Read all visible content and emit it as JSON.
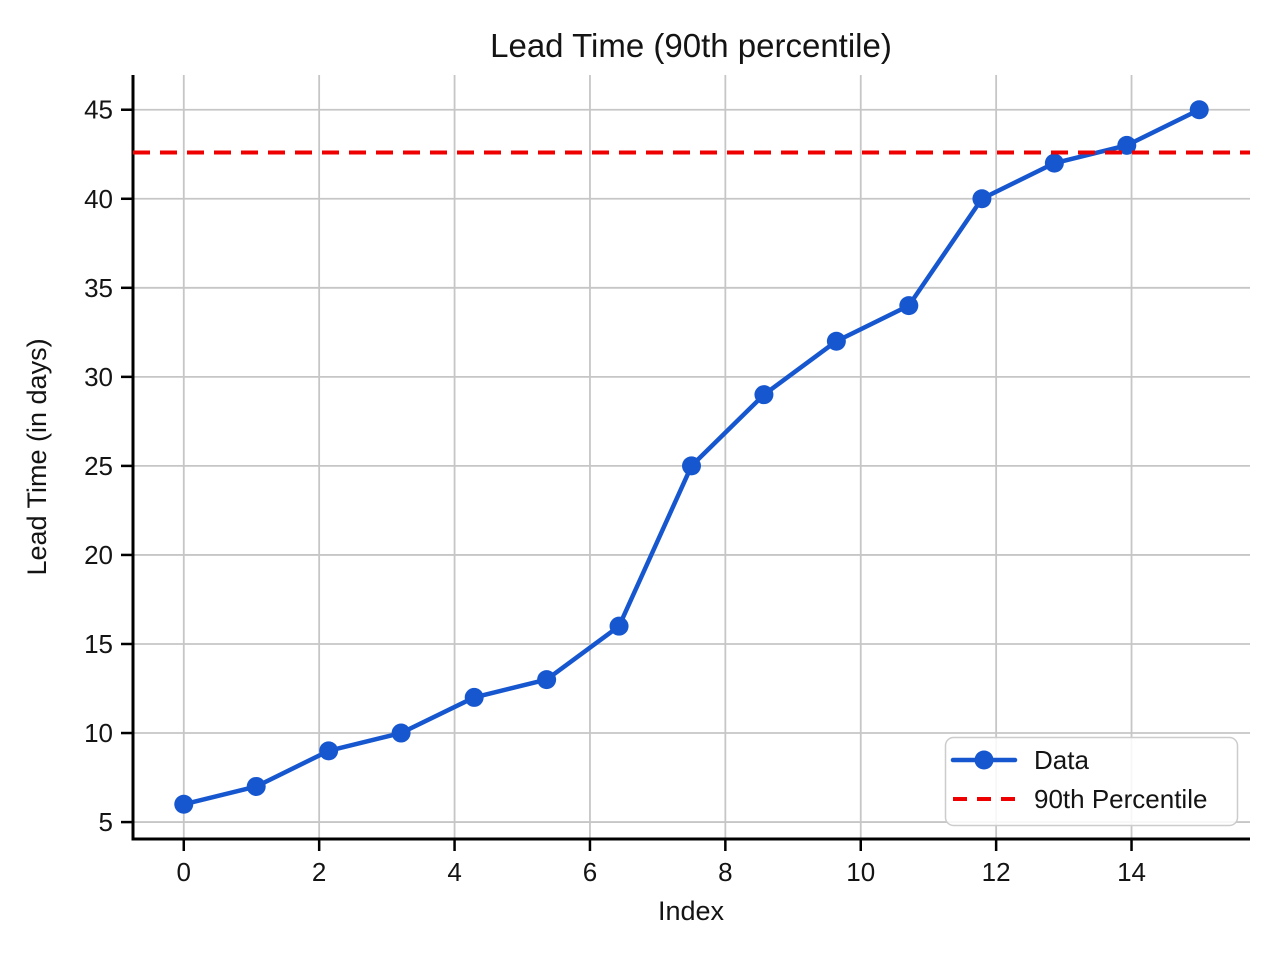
{
  "chart_data": {
    "type": "line",
    "title": "Lead Time (90th percentile)",
    "xlabel": "Index",
    "ylabel": "Lead Time (in days)",
    "x": [
      0,
      1.07,
      2.14,
      3.21,
      4.29,
      5.36,
      6.43,
      7.5,
      8.57,
      9.64,
      10.71,
      11.79,
      12.86,
      13.93,
      15
    ],
    "series": [
      {
        "name": "Data",
        "values": [
          6,
          7,
          9,
          10,
          12,
          13,
          16,
          25,
          29,
          32,
          34,
          40,
          42,
          43,
          45
        ]
      }
    ],
    "reference_line": {
      "label": "90th Percentile",
      "value": 42.6
    },
    "xlim": [
      -0.75,
      15.75
    ],
    "ylim": [
      4.05,
      46.95
    ],
    "xticks": [
      0,
      2,
      4,
      6,
      8,
      10,
      12,
      14
    ],
    "yticks": [
      5,
      10,
      15,
      20,
      25,
      30,
      35,
      40,
      45
    ],
    "grid": true,
    "legend": {
      "position": "lower right",
      "entries": [
        {
          "label": "Data",
          "style": "solid-line-with-marker"
        },
        {
          "label": "90th Percentile",
          "style": "dashed-line"
        }
      ]
    },
    "colors": {
      "data_line": "#1657d0",
      "percentile_line": "#ee0000",
      "grid": "#c6c6c6",
      "spine": "#000000",
      "text": "#141414",
      "legend_border": "#cccccc",
      "background": "#ffffff"
    }
  }
}
